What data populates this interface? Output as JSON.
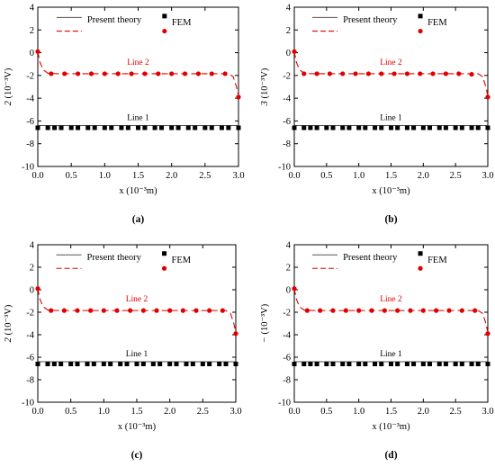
{
  "colors": {
    "theory_line1": "#555555",
    "theory_line2": "#e00000",
    "fem_line1": "#000000",
    "fem_line2": "#e00000",
    "axis": "#000000"
  },
  "legend": {
    "theory_label": "Present theory",
    "fem_label": "FEM"
  },
  "chart_data": [
    {
      "type": "line",
      "panel_label": "(a)",
      "ylabel_prefix": "2",
      "ylabel_unit": "(10⁻³V)",
      "xlabel": "x (10⁻³m)",
      "xlim": [
        0.0,
        3.0
      ],
      "ylim": [
        -10,
        4
      ],
      "xticks": [
        "0.0",
        "0.5",
        "1.0",
        "1.5",
        "2.0",
        "2.5",
        "3.0"
      ],
      "yticks": [
        "4",
        "2",
        "0",
        "-2",
        "-4",
        "-6",
        "-8",
        "-10"
      ],
      "series": [
        {
          "name": "Line 1",
          "kind": "theory",
          "x": [
            0.0,
            3.0
          ],
          "values": [
            -6.4,
            -6.4
          ]
        },
        {
          "name": "Line 1",
          "kind": "fem",
          "x": [
            0.0,
            0.15,
            0.25,
            0.35,
            0.5,
            0.6,
            0.75,
            0.85,
            1.0,
            1.1,
            1.25,
            1.35,
            1.5,
            1.6,
            1.75,
            1.85,
            2.0,
            2.1,
            2.25,
            2.35,
            2.5,
            2.6,
            2.75,
            2.85,
            3.0
          ],
          "values": [
            -6.6,
            -6.6,
            -6.6,
            -6.6,
            -6.6,
            -6.6,
            -6.6,
            -6.6,
            -6.6,
            -6.6,
            -6.6,
            -6.6,
            -6.6,
            -6.6,
            -6.6,
            -6.6,
            -6.6,
            -6.6,
            -6.6,
            -6.6,
            -6.6,
            -6.6,
            -6.6,
            -6.6,
            -6.6
          ]
        },
        {
          "name": "Line 2",
          "kind": "theory",
          "x": [
            0.0,
            0.03,
            0.08,
            0.15,
            0.3,
            1.0,
            2.0,
            2.85,
            2.92,
            2.97,
            3.0
          ],
          "values": [
            0.1,
            -0.8,
            -1.5,
            -1.8,
            -1.85,
            -1.85,
            -1.85,
            -1.85,
            -2.1,
            -3.0,
            -3.8
          ]
        },
        {
          "name": "Line 2",
          "kind": "fem",
          "x": [
            0.0,
            0.2,
            0.4,
            0.6,
            0.8,
            1.0,
            1.2,
            1.4,
            1.6,
            1.8,
            2.0,
            2.2,
            2.4,
            2.6,
            2.8,
            3.0
          ],
          "values": [
            0.1,
            -1.85,
            -1.85,
            -1.85,
            -1.85,
            -1.85,
            -1.85,
            -1.85,
            -1.85,
            -1.85,
            -1.85,
            -1.85,
            -1.85,
            -1.85,
            -1.85,
            -3.9
          ]
        }
      ]
    },
    {
      "type": "line",
      "panel_label": "(b)",
      "ylabel_prefix": "3",
      "ylabel_unit": "(10⁻³V)",
      "xlabel": "x (10⁻³m)",
      "xlim": [
        0.0,
        3.0
      ],
      "ylim": [
        -10,
        4
      ],
      "xticks": [
        "0.0",
        "0.5",
        "1.0",
        "1.5",
        "2.0",
        "2.5",
        "3.0"
      ],
      "yticks": [
        "4",
        "2",
        "0",
        "-2",
        "-4",
        "-6",
        "-8",
        "-10"
      ],
      "series": [
        {
          "name": "Line 1",
          "kind": "theory",
          "x": [
            0.0,
            3.0
          ],
          "values": [
            -6.4,
            -6.4
          ]
        },
        {
          "name": "Line 1",
          "kind": "fem",
          "x": [
            0.0,
            0.15,
            0.25,
            0.35,
            0.5,
            0.6,
            0.75,
            0.85,
            1.0,
            1.1,
            1.25,
            1.35,
            1.5,
            1.6,
            1.75,
            1.85,
            2.0,
            2.1,
            2.25,
            2.35,
            2.5,
            2.6,
            2.75,
            2.85,
            3.0
          ],
          "values": [
            -6.6,
            -6.6,
            -6.6,
            -6.6,
            -6.6,
            -6.6,
            -6.6,
            -6.6,
            -6.6,
            -6.6,
            -6.6,
            -6.6,
            -6.6,
            -6.6,
            -6.6,
            -6.6,
            -6.6,
            -6.6,
            -6.6,
            -6.6,
            -6.6,
            -6.6,
            -6.6,
            -6.6,
            -6.6
          ]
        },
        {
          "name": "Line 2",
          "kind": "theory",
          "x": [
            0.0,
            0.03,
            0.08,
            0.15,
            0.3,
            1.0,
            2.0,
            2.85,
            2.92,
            2.97,
            3.0
          ],
          "values": [
            0.1,
            -0.8,
            -1.5,
            -1.8,
            -1.85,
            -1.85,
            -1.85,
            -1.85,
            -2.1,
            -3.0,
            -3.8
          ]
        },
        {
          "name": "Line 2",
          "kind": "fem",
          "x": [
            0.0,
            0.15,
            0.35,
            0.55,
            0.75,
            0.95,
            1.15,
            1.35,
            1.55,
            1.75,
            1.95,
            2.15,
            2.35,
            2.55,
            2.75,
            3.0
          ],
          "values": [
            0.1,
            -1.85,
            -1.85,
            -1.85,
            -1.85,
            -1.85,
            -1.85,
            -1.85,
            -1.85,
            -1.85,
            -1.85,
            -1.85,
            -1.85,
            -1.85,
            -1.9,
            -3.9
          ]
        }
      ]
    },
    {
      "type": "line",
      "panel_label": "(c)",
      "ylabel_prefix": "2",
      "ylabel_unit": "(10⁻³V)",
      "xlabel": "x (10⁻³m)",
      "xlim": [
        0.0,
        3.0
      ],
      "ylim": [
        -10,
        4
      ],
      "xticks": [
        "0.0",
        "0.5",
        "1.0",
        "1.5",
        "2.0",
        "2.5",
        "3.0"
      ],
      "yticks": [
        "4",
        "2",
        "0",
        "-2",
        "-4",
        "-6",
        "-8",
        "-10"
      ],
      "series": [
        {
          "name": "Line 1",
          "kind": "theory",
          "x": [
            0.0,
            3.0
          ],
          "values": [
            -6.4,
            -6.4
          ]
        },
        {
          "name": "Line 1",
          "kind": "fem",
          "x": [
            0.0,
            0.15,
            0.25,
            0.35,
            0.5,
            0.6,
            0.75,
            0.85,
            1.0,
            1.1,
            1.25,
            1.35,
            1.5,
            1.6,
            1.75,
            1.85,
            2.0,
            2.1,
            2.25,
            2.35,
            2.5,
            2.6,
            2.75,
            2.85,
            3.0
          ],
          "values": [
            -6.6,
            -6.6,
            -6.6,
            -6.6,
            -6.6,
            -6.6,
            -6.6,
            -6.6,
            -6.6,
            -6.6,
            -6.6,
            -6.6,
            -6.6,
            -6.6,
            -6.6,
            -6.6,
            -6.6,
            -6.6,
            -6.6,
            -6.6,
            -6.6,
            -6.6,
            -6.6,
            -6.6,
            -6.6
          ]
        },
        {
          "name": "Line 2",
          "kind": "theory",
          "x": [
            0.0,
            0.03,
            0.08,
            0.15,
            0.3,
            1.0,
            2.0,
            2.85,
            2.92,
            2.97,
            3.0
          ],
          "values": [
            0.1,
            -0.8,
            -1.5,
            -1.8,
            -1.85,
            -1.85,
            -1.85,
            -1.85,
            -2.1,
            -3.0,
            -3.8
          ]
        },
        {
          "name": "Line 2",
          "kind": "fem",
          "x": [
            0.0,
            0.2,
            0.4,
            0.6,
            0.8,
            1.0,
            1.2,
            1.4,
            1.6,
            1.8,
            2.0,
            2.2,
            2.4,
            2.6,
            2.8,
            3.0
          ],
          "values": [
            0.1,
            -1.85,
            -1.85,
            -1.85,
            -1.85,
            -1.85,
            -1.85,
            -1.85,
            -1.85,
            -1.85,
            -1.85,
            -1.85,
            -1.85,
            -1.85,
            -1.85,
            -3.9
          ]
        }
      ]
    },
    {
      "type": "line",
      "panel_label": "(d)",
      "ylabel_prefix": "−",
      "ylabel_unit": "(10⁻³V)",
      "xlabel": "x (10⁻³m)",
      "xlim": [
        0.0,
        3.0
      ],
      "ylim": [
        -10,
        4
      ],
      "xticks": [
        "0.0",
        "0.5",
        "1.0",
        "1.5",
        "2.0",
        "2.5",
        "3.0"
      ],
      "yticks": [
        "4",
        "2",
        "0",
        "-2",
        "-4",
        "-6",
        "-8",
        "-10"
      ],
      "series": [
        {
          "name": "Line 1",
          "kind": "theory",
          "x": [
            0.0,
            3.0
          ],
          "values": [
            -6.4,
            -6.4
          ]
        },
        {
          "name": "Line 1",
          "kind": "fem",
          "x": [
            0.0,
            0.15,
            0.25,
            0.35,
            0.5,
            0.6,
            0.75,
            0.85,
            1.0,
            1.1,
            1.25,
            1.35,
            1.5,
            1.6,
            1.75,
            1.85,
            2.0,
            2.1,
            2.25,
            2.35,
            2.5,
            2.6,
            2.75,
            2.85,
            3.0
          ],
          "values": [
            -6.6,
            -6.6,
            -6.6,
            -6.6,
            -6.6,
            -6.6,
            -6.6,
            -6.6,
            -6.6,
            -6.6,
            -6.6,
            -6.6,
            -6.6,
            -6.6,
            -6.6,
            -6.6,
            -6.6,
            -6.6,
            -6.6,
            -6.6,
            -6.6,
            -6.6,
            -6.6,
            -6.6,
            -6.6
          ]
        },
        {
          "name": "Line 2",
          "kind": "theory",
          "x": [
            0.0,
            0.03,
            0.08,
            0.15,
            0.3,
            1.0,
            2.0,
            2.85,
            2.92,
            2.97,
            3.0
          ],
          "values": [
            0.1,
            -0.8,
            -1.5,
            -1.8,
            -1.85,
            -1.85,
            -1.85,
            -1.85,
            -2.1,
            -3.0,
            -3.8
          ]
        },
        {
          "name": "Line 2",
          "kind": "fem",
          "x": [
            0.0,
            0.2,
            0.4,
            0.6,
            0.8,
            1.0,
            1.2,
            1.4,
            1.6,
            1.8,
            2.0,
            2.2,
            2.4,
            2.6,
            2.8,
            3.0
          ],
          "values": [
            0.1,
            -1.85,
            -1.85,
            -1.85,
            -1.85,
            -1.85,
            -1.85,
            -1.85,
            -1.85,
            -1.85,
            -1.85,
            -1.85,
            -1.85,
            -1.85,
            -1.85,
            -3.9
          ]
        }
      ]
    }
  ]
}
